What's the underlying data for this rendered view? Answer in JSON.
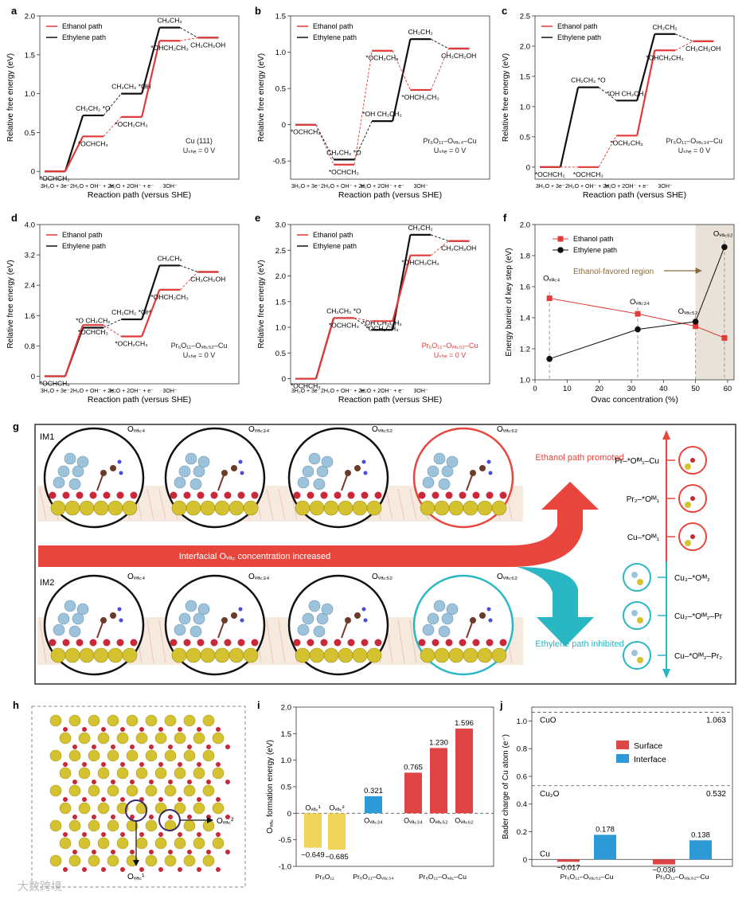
{
  "energy_panels": [
    {
      "letter": "a",
      "ylabel": "Relative free energy (eV)",
      "xlabel": "Reaction path (versus SHE)",
      "ylim": [
        -0.1,
        2.0
      ],
      "yticks": [
        "0",
        "0.5",
        "1.0",
        "1.5",
        "2.0"
      ],
      "ytickvals": [
        0,
        0.5,
        1.0,
        1.5,
        2.0
      ],
      "steps": [
        "3H₂O + 3e⁻",
        "2H₂O + OH⁻ + 2e⁻",
        "H₂O + 2OH⁻ + e⁻",
        "3OH⁻"
      ],
      "legend": [
        "Ethanol path",
        "Ethylene path"
      ],
      "catalyst": "Cu (111)",
      "potential": "Uₛₕₑ = 0 V",
      "catalyst_color": "#222222",
      "ethanol": [
        0,
        0.45,
        0.7,
        1.68,
        1.72
      ],
      "ethylene": [
        0,
        0.72,
        1.0,
        1.85,
        1.72
      ],
      "eth_labels": [
        "*OCHCH₂",
        "*OCHCH₃",
        "*OCH₂CH₃",
        "*OHCH₂CH₃",
        "CH₃CH₂OH"
      ],
      "ene_labels": [
        "",
        "CH₂CH₂ *O",
        "CH₂CH₂ *OH",
        "CH₂CH₂",
        ""
      ]
    },
    {
      "letter": "b",
      "ylabel": "Relative free energy (eV)",
      "xlabel": "Reaction path (versus SHE)",
      "ylim": [
        -0.75,
        1.5
      ],
      "yticks": [
        "-0.5",
        "0",
        "0.5",
        "1.0",
        "1.5"
      ],
      "ytickvals": [
        -0.5,
        0,
        0.5,
        1.0,
        1.5
      ],
      "steps": [
        "3H₂O + 3e⁻",
        "2H₂O + OH⁻ + 2e⁻",
        "H₂O + 2OH⁻ + e⁻",
        "3OH⁻"
      ],
      "legend": [
        "Ethanol path",
        "Ethylene path"
      ],
      "catalyst": "Pr₆O₁₁–Oᵥₐ꜀₄–Cu",
      "potential": "Uₛₕₑ = 0 V",
      "catalyst_color": "#222222",
      "ethanol": [
        0,
        -0.55,
        1.02,
        0.48,
        1.05
      ],
      "ethylene": [
        0,
        -0.48,
        0.05,
        1.18,
        1.05
      ],
      "eth_labels": [
        "*OCHCH₂",
        "*OCHCH₃",
        "*OCH₂CH₃",
        "*OHCH₂CH₃",
        "CH₃CH₂OH"
      ],
      "ene_labels": [
        "",
        "CH₂CH₂ *O",
        "*OH CH₂CH₂",
        "CH₂CH₂",
        ""
      ]
    },
    {
      "letter": "c",
      "ylabel": "Relative free energy (eV)",
      "xlabel": "Reaction path (versus SHE)",
      "ylim": [
        -0.2,
        2.5
      ],
      "yticks": [
        "0",
        "0.5",
        "1.0",
        "1.5",
        "2.0",
        "2.5"
      ],
      "ytickvals": [
        0,
        0.5,
        1.0,
        1.5,
        2.0,
        2.5
      ],
      "steps": [
        "3H₂O + 3e⁻",
        "2H₂O + OH⁻ + 2e⁻",
        "H₂O + 2OH⁻ + e⁻",
        "3OH⁻"
      ],
      "legend": [
        "Ethanol path",
        "Ethylene path"
      ],
      "catalyst": "Pr₆O₁₁–Oᵥₐ꜀₃₄–Cu",
      "potential": "Uₛₕₑ = 0 V",
      "catalyst_color": "#222222",
      "ethanol": [
        0,
        0.0,
        0.52,
        1.93,
        2.08
      ],
      "ethylene": [
        0,
        1.32,
        1.1,
        2.2,
        2.08
      ],
      "eth_labels": [
        "*OCHCH₂",
        "*OCHCH₃",
        "*OCH₂CH₃",
        "*OHCH₂CH₃",
        "CH₃CH₂OH"
      ],
      "ene_labels": [
        "",
        "CH₂CH₂ *O",
        "*OH CH₂CH₂",
        "CH₂CH₂",
        ""
      ]
    },
    {
      "letter": "d",
      "ylabel": "Relative free energy (eV)",
      "xlabel": "Reaction path (versus SHE)",
      "ylim": [
        -0.2,
        4.0
      ],
      "yticks": [
        "0",
        "0.8",
        "1.6",
        "2.4",
        "3.2",
        "4.0"
      ],
      "ytickvals": [
        0,
        0.8,
        1.6,
        2.4,
        3.2,
        4.0
      ],
      "steps": [
        "3H₂O + 3e⁻",
        "2H₂O + OH⁻ + 2e⁻",
        "H₂O + 2OH⁻ + e⁻",
        "3OH⁻"
      ],
      "legend": [
        "Ethanol path",
        "Ethylene path"
      ],
      "catalyst": "Pr₆O₁₁–Oᵥₐ꜀₅₂–Cu",
      "potential": "Uₛₕₑ = 0 V",
      "catalyst_color": "#222222",
      "ethanol": [
        0,
        1.35,
        1.05,
        2.28,
        2.75
      ],
      "ethylene": [
        0,
        1.28,
        1.5,
        2.92,
        2.75
      ],
      "eth_labels": [
        "*OCHCH₂",
        "*OCHCH₃",
        "*OCH₂CH₃",
        "*OHCH₂CH₃",
        "CH₃CH₂OH"
      ],
      "ene_labels": [
        "",
        "*O CH₂CH₂",
        "CH₂CH₂ *OH",
        "CH₂CH₂",
        ""
      ]
    },
    {
      "letter": "e",
      "ylabel": "Relative free energy (eV)",
      "xlabel": "Reaction path (versus SHE)",
      "ylim": [
        -0.1,
        3.0
      ],
      "yticks": [
        "0",
        "0.5",
        "1.0",
        "1.5",
        "2.0",
        "2.5",
        "3.0"
      ],
      "ytickvals": [
        0,
        0.5,
        1.0,
        1.5,
        2.0,
        2.5,
        3.0
      ],
      "steps": [
        "3H₂O + 3e⁻",
        "2H₂O + OH⁻ + 2e⁻",
        "H₂O + 2OH⁻ + e⁻",
        "3OH⁻"
      ],
      "legend": [
        "Ethanol path",
        "Ethylene path"
      ],
      "catalyst": "Pr₆O₁₁–Oᵥₐ꜀₆₂–Cu",
      "potential": "Uₛₕₑ = 0 V",
      "catalyst_color": "#e03a3a",
      "ethanol": [
        0,
        1.18,
        1.12,
        2.4,
        2.68
      ],
      "ethylene": [
        0,
        1.18,
        0.95,
        2.8,
        2.68
      ],
      "eth_labels": [
        "*OCHCH₂",
        "*OCHCH₃",
        "*OCH₂CH₃",
        "*OHCH₂CH₃",
        "CH₃CH₂OH"
      ],
      "ene_labels": [
        "",
        "CH₂CH₂ *O",
        "*OH CH₂CH₂",
        "CH₂CH₂",
        ""
      ]
    }
  ],
  "panel_f": {
    "letter": "f",
    "type": "line",
    "xlabel": "Ovac concentration (%)",
    "ylabel": "Energy barrier of key step (eV)",
    "xlim": [
      0,
      62
    ],
    "ylim": [
      1.0,
      2.0
    ],
    "xticks": [
      "0",
      "10",
      "20",
      "30",
      "40",
      "50",
      "60"
    ],
    "xtickvals": [
      0,
      10,
      20,
      30,
      40,
      50,
      60
    ],
    "yticks": [
      "1.0",
      "1.2",
      "1.4",
      "1.6",
      "1.8",
      "2.0"
    ],
    "ytickvals": [
      1.0,
      1.2,
      1.4,
      1.6,
      1.8,
      2.0
    ],
    "x": [
      4.5,
      32,
      50,
      59
    ],
    "series": [
      {
        "name": "Ethanol path",
        "values": [
          1.525,
          1.425,
          1.345,
          1.27
        ],
        "color": "#e03a3a"
      },
      {
        "name": "Ethylene path",
        "values": [
          1.135,
          1.325,
          1.375,
          1.855
        ],
        "color": "#111111"
      }
    ],
    "point_labels": [
      "Oᵥₐ꜀₄",
      "Oᵥₐ꜀₃₄",
      "Oᵥₐ꜀₅₂",
      "Oᵥₐ꜀₆₂"
    ],
    "region_label": "Ethanol-favored region",
    "region_start": 50
  },
  "panel_g": {
    "letter": "g",
    "row1": "IM1",
    "row2": "IM2",
    "circle_labels": [
      "Oᵥₐ꜀₄",
      "Oᵥₐ꜀₃₄",
      "Oᵥₐ꜀₅₂",
      "Oᵥₐ꜀₆₂"
    ],
    "arrow_text": "Interfacial Oᵥₐ꜀ concentration increased",
    "ethanol_text": "Ethanol path promoted",
    "ethylene_text": "Ethylene path inhibited",
    "right_labels_top": [
      "Pr–*Oᴵᴹ₁–Cu",
      "Pr₂–*Oᴵᴹ₁",
      "Cu–*Oᴵᴹ₁"
    ],
    "right_labels_bottom": [
      "Cu₃–*Oᴵᴹ₂",
      "Cu₂–*Oᴵᴹ₂–Pr",
      "Cu–*Oᴵᴹ₂–Pr₂"
    ],
    "colors": {
      "red": "#e8453c",
      "teal": "#2ab7c4"
    }
  },
  "panel_h": {
    "letter": "h",
    "labels": [
      "Oᵥₐ꜀¹",
      "Oᵥₐ꜀²"
    ]
  },
  "panel_i": {
    "letter": "i",
    "type": "bar",
    "ylabel": "Oᵥₐ꜀ formation energy (eV)",
    "ylim": [
      -1.0,
      2.0
    ],
    "yticks": [
      "-1.0",
      "-0.5",
      "0",
      "0.5",
      "1.0",
      "1.5",
      "2.0"
    ],
    "ytickvals": [
      -1.0,
      -0.5,
      0,
      0.5,
      1.0,
      1.5,
      2.0
    ],
    "bars": [
      {
        "label": "Oᵥₐ꜀¹",
        "value": -0.649,
        "value_text": "−0.649",
        "color": "#f0d45a"
      },
      {
        "label": "Oᵥₐ꜀²",
        "value": -0.685,
        "value_text": "−0.685",
        "color": "#f0d45a"
      },
      {
        "label": "Oᵥₐ꜀₃₄",
        "value": 0.321,
        "value_text": "0.321",
        "color": "#2d9ad8"
      },
      {
        "label": "Oᵥₐ꜀₃₄",
        "value": 0.765,
        "value_text": "0.765",
        "color": "#e04545"
      },
      {
        "label": "Oᵥₐ꜀₅₂",
        "value": 1.23,
        "value_text": "1.230",
        "color": "#e04545"
      },
      {
        "label": "Oᵥₐ꜀₆₂",
        "value": 1.596,
        "value_text": "1.596",
        "color": "#e04545"
      }
    ],
    "groups": [
      "Pr₆O₁₁",
      "Pr₆O₁₁–Oᵥₐ꜀₃₄",
      "Pr₆O₁₁–Oᵥₐ꜀–Cu"
    ]
  },
  "panel_j": {
    "letter": "j",
    "type": "bar",
    "ylabel": "Bader charge of Cu atom (e⁻)",
    "ylim": [
      -0.05,
      1.1
    ],
    "yticks": [
      "0",
      "0.2",
      "0.4",
      "0.6",
      "0.8",
      "1.0"
    ],
    "ytickvals": [
      0,
      0.2,
      0.4,
      0.6,
      0.8,
      1.0
    ],
    "legend": [
      {
        "name": "Surface",
        "color": "#e04545"
      },
      {
        "name": "Interface",
        "color": "#2d9ad8"
      }
    ],
    "refs": [
      {
        "name": "CuO",
        "value": 1.063,
        "value_text": "1.063"
      },
      {
        "name": "Cu₂O",
        "value": 0.532,
        "value_text": "0.532"
      },
      {
        "name": "Cu",
        "value": 0
      }
    ],
    "bars": [
      {
        "group": "Pr₆O₁₁–Oᵥₐ꜀₅₂–Cu",
        "surface": -0.017,
        "surface_text": "−0.017",
        "interface": 0.178,
        "interface_text": "0.178"
      },
      {
        "group": "Pr₆O₁₁–Oᵥₐ꜀₆₂–Cu",
        "surface": -0.036,
        "surface_text": "−0.036",
        "interface": 0.138,
        "interface_text": "0.138"
      }
    ]
  },
  "watermark": "大数跨境"
}
